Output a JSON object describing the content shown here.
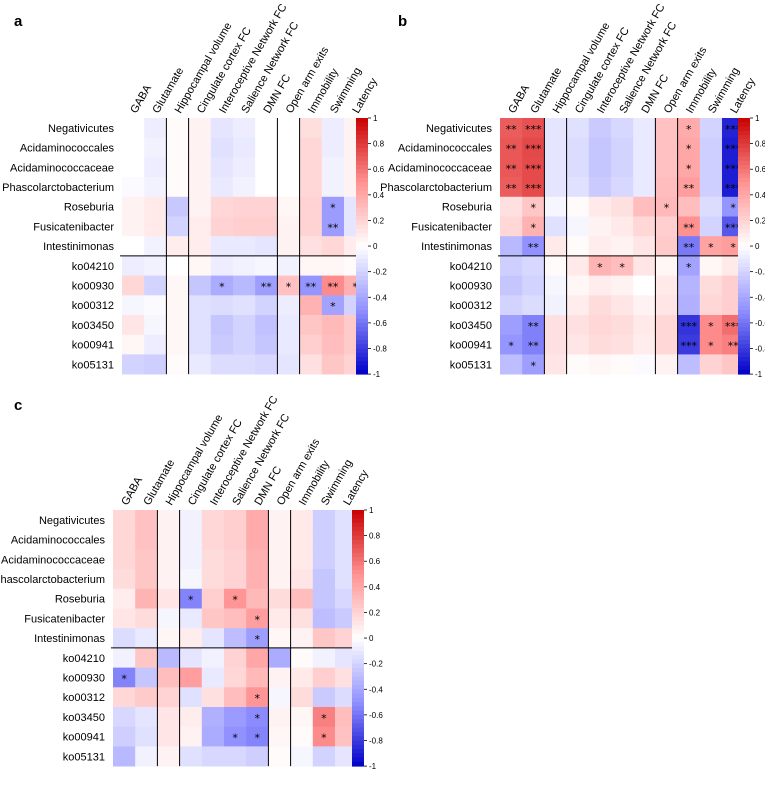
{
  "chart_data": [
    {
      "type": "heatmap",
      "panel_label": "a",
      "rows": [
        "Negativicutes",
        "Acidaminococcales",
        "Acidaminococcaceae",
        "Phascolarctobacterium",
        "Roseburia",
        "Fusicatenibacter",
        "Intestinimonas",
        "ko04210",
        "ko00930",
        "ko00312",
        "ko03450",
        "ko00941",
        "ko05131"
      ],
      "columns": [
        "GABA",
        "Glutamate",
        "Hippocampal volume",
        "Cingulate cortex FC",
        "Interoceptive Network FC",
        "Salience Network FC",
        "DMN FC",
        "Open arm exits",
        "Immobility",
        "Swimming",
        "Latency"
      ],
      "values": [
        [
          0.0,
          -0.08,
          0.02,
          0.06,
          -0.12,
          -0.08,
          0.0,
          0.0,
          0.15,
          -0.08,
          0.06
        ],
        [
          0.0,
          -0.06,
          0.02,
          0.06,
          -0.14,
          -0.1,
          0.0,
          0.0,
          0.18,
          -0.08,
          0.06
        ],
        [
          0.0,
          -0.08,
          0.02,
          0.06,
          -0.12,
          -0.08,
          0.0,
          0.0,
          0.18,
          -0.06,
          0.06
        ],
        [
          -0.02,
          -0.06,
          0.02,
          0.06,
          -0.1,
          -0.06,
          0.0,
          0.0,
          0.18,
          -0.06,
          0.06
        ],
        [
          0.06,
          0.1,
          -0.25,
          0.06,
          0.18,
          0.2,
          0.2,
          0.04,
          0.2,
          -0.45,
          -0.12
        ],
        [
          0.06,
          0.1,
          -0.2,
          0.08,
          0.2,
          0.22,
          0.22,
          0.06,
          0.2,
          -0.45,
          -0.12
        ],
        [
          0.0,
          -0.06,
          0.08,
          0.08,
          -0.1,
          -0.1,
          -0.12,
          0.06,
          0.14,
          0.18,
          0.08
        ],
        [
          -0.08,
          -0.06,
          0.0,
          0.04,
          -0.08,
          -0.06,
          -0.04,
          -0.06,
          0.04,
          0.04,
          0.02
        ],
        [
          0.18,
          -0.2,
          0.04,
          -0.26,
          -0.38,
          -0.32,
          -0.44,
          0.28,
          -0.48,
          0.52,
          0.36
        ],
        [
          -0.04,
          -0.02,
          0.04,
          -0.14,
          -0.16,
          -0.14,
          -0.2,
          -0.08,
          0.35,
          -0.42,
          -0.2
        ],
        [
          0.12,
          -0.04,
          0.04,
          -0.14,
          -0.26,
          -0.2,
          -0.28,
          -0.1,
          0.26,
          0.32,
          0.24
        ],
        [
          0.04,
          -0.08,
          0.04,
          -0.14,
          -0.24,
          -0.2,
          -0.26,
          -0.1,
          0.22,
          0.3,
          0.24
        ],
        [
          -0.2,
          -0.22,
          0.02,
          -0.1,
          -0.16,
          -0.16,
          -0.18,
          -0.12,
          0.14,
          0.26,
          0.2
        ]
      ],
      "significance": [
        [
          "",
          "",
          "",
          "",
          "",
          "",
          "",
          "",
          "",
          "",
          ""
        ],
        [
          "",
          "",
          "",
          "",
          "",
          "",
          "",
          "",
          "",
          "",
          ""
        ],
        [
          "",
          "",
          "",
          "",
          "",
          "",
          "",
          "",
          "",
          "",
          ""
        ],
        [
          "",
          "",
          "",
          "",
          "",
          "",
          "",
          "",
          "",
          "",
          ""
        ],
        [
          "",
          "",
          "",
          "",
          "",
          "",
          "",
          "",
          "",
          "*",
          ""
        ],
        [
          "",
          "",
          "",
          "",
          "",
          "",
          "",
          "",
          "",
          "**",
          ""
        ],
        [
          "",
          "",
          "",
          "",
          "",
          "",
          "",
          "",
          "",
          "",
          ""
        ],
        [
          "",
          "",
          "",
          "",
          "",
          "",
          "",
          "",
          "",
          "",
          ""
        ],
        [
          "",
          "",
          "",
          "",
          "*",
          "",
          "**",
          "*",
          "**",
          "**",
          "*"
        ],
        [
          "",
          "",
          "",
          "",
          "",
          "",
          "",
          "",
          "",
          "*",
          ""
        ],
        [
          "",
          "",
          "",
          "",
          "",
          "",
          "",
          "",
          "",
          "",
          ""
        ],
        [
          "",
          "",
          "",
          "",
          "",
          "",
          "",
          "",
          "",
          "",
          ""
        ],
        [
          "",
          "",
          "",
          "",
          "",
          "",
          "",
          "",
          "",
          "",
          ""
        ]
      ],
      "zlim": [
        -1,
        1
      ],
      "colorbar_ticks": [
        "1",
        "0.8",
        "0.6",
        "0.4",
        "0.2",
        "0",
        "-0.2",
        "-0.4",
        "-0.6",
        "-0.8",
        "-1"
      ]
    },
    {
      "type": "heatmap",
      "panel_label": "b",
      "rows": [
        "Negativicutes",
        "Acidaminococcales",
        "Acidaminococcaceae",
        "Phascolarctobacterium",
        "Roseburia",
        "Fusicatenibacter",
        "Intestinimonas",
        "ko04210",
        "ko00930",
        "ko00312",
        "ko03450",
        "ko00941",
        "ko05131"
      ],
      "columns": [
        "GABA",
        "Glutamate",
        "Hippocampal volume",
        "Cingulate cortex FC",
        "Interoceptive Network FC",
        "Salience Network FC",
        "DMN FC",
        "Open arm exits",
        "Immobility",
        "Swimming",
        "Latency"
      ],
      "values": [
        [
          0.68,
          0.72,
          -0.12,
          -0.14,
          -0.24,
          -0.18,
          -0.1,
          0.28,
          0.38,
          -0.2,
          -0.88
        ],
        [
          0.7,
          0.75,
          -0.12,
          -0.16,
          -0.26,
          -0.2,
          -0.1,
          0.28,
          0.4,
          -0.22,
          -0.9
        ],
        [
          0.7,
          0.74,
          -0.12,
          -0.16,
          -0.26,
          -0.2,
          -0.1,
          0.28,
          0.4,
          -0.22,
          -0.9
        ],
        [
          0.68,
          0.74,
          -0.12,
          -0.14,
          -0.24,
          -0.18,
          -0.1,
          0.3,
          0.44,
          -0.22,
          -0.9
        ],
        [
          0.14,
          0.26,
          -0.04,
          0.02,
          0.1,
          0.14,
          0.3,
          0.32,
          0.3,
          -0.16,
          -0.48
        ],
        [
          0.18,
          0.35,
          -0.14,
          -0.04,
          0.06,
          0.1,
          0.18,
          0.22,
          0.5,
          -0.2,
          -0.7
        ],
        [
          -0.32,
          -0.5,
          0.1,
          0.02,
          0.08,
          0.06,
          0.12,
          0.24,
          -0.58,
          0.42,
          0.45
        ],
        [
          -0.22,
          -0.18,
          0.02,
          0.1,
          0.34,
          0.3,
          0.12,
          0.04,
          -0.42,
          0.04,
          0.1
        ],
        [
          -0.26,
          -0.2,
          -0.04,
          0.04,
          0.08,
          0.06,
          0.0,
          0.1,
          -0.34,
          0.16,
          0.22
        ],
        [
          -0.2,
          -0.16,
          -0.06,
          0.08,
          0.16,
          0.12,
          0.06,
          0.12,
          -0.36,
          0.18,
          0.22
        ],
        [
          -0.44,
          -0.56,
          0.14,
          0.14,
          0.18,
          0.16,
          0.1,
          0.18,
          -0.82,
          0.52,
          0.62
        ],
        [
          -0.48,
          -0.56,
          0.14,
          0.12,
          0.16,
          0.14,
          0.08,
          0.18,
          -0.8,
          0.52,
          0.56
        ],
        [
          -0.3,
          -0.44,
          0.12,
          0.02,
          0.04,
          0.02,
          -0.02,
          0.06,
          -0.3,
          0.2,
          0.26
        ]
      ],
      "significance": [
        [
          "**",
          "***",
          "",
          "",
          "",
          "",
          "",
          "",
          "*",
          "",
          "***"
        ],
        [
          "**",
          "***",
          "",
          "",
          "",
          "",
          "",
          "",
          "*",
          "",
          "***"
        ],
        [
          "**",
          "***",
          "",
          "",
          "",
          "",
          "",
          "",
          "*",
          "",
          "***"
        ],
        [
          "**",
          "***",
          "",
          "",
          "",
          "",
          "",
          "",
          "**",
          "",
          "***"
        ],
        [
          "",
          "*",
          "",
          "",
          "",
          "",
          "",
          "*",
          "",
          "",
          "*"
        ],
        [
          "",
          "*",
          "",
          "",
          "",
          "",
          "",
          "",
          "**",
          "",
          "***"
        ],
        [
          "",
          "**",
          "",
          "",
          "",
          "",
          "",
          "",
          "**",
          "*",
          "*"
        ],
        [
          "",
          "",
          "",
          "",
          "*",
          "*",
          "",
          "",
          "*",
          "",
          ""
        ],
        [
          "",
          "",
          "",
          "",
          "",
          "",
          "",
          "",
          "",
          "",
          ""
        ],
        [
          "",
          "",
          "",
          "",
          "",
          "",
          "",
          "",
          "",
          "",
          ""
        ],
        [
          "",
          "**",
          "",
          "",
          "",
          "",
          "",
          "",
          "***",
          "*",
          "***"
        ],
        [
          "*",
          "**",
          "",
          "",
          "",
          "",
          "",
          "",
          "***",
          "*",
          "**"
        ],
        [
          "",
          "*",
          "",
          "",
          "",
          "",
          "",
          "",
          "",
          "",
          ""
        ]
      ],
      "zlim": [
        -1,
        1
      ],
      "colorbar_ticks": [
        "1",
        "0.8",
        "0.6",
        "0.4",
        "0.2",
        "0",
        "-0.2",
        "-0.4",
        "-0.6",
        "-0.8",
        "-1"
      ]
    },
    {
      "type": "heatmap",
      "panel_label": "c",
      "rows": [
        "Negativicutes",
        "Acidaminococcales",
        "Acidaminococcaceae",
        "Phascolarctobacterium",
        "Roseburia",
        "Fusicatenibacter",
        "Intestinimonas",
        "ko04210",
        "ko00930",
        "ko00312",
        "ko03450",
        "ko00941",
        "ko05131"
      ],
      "columns": [
        "GABA",
        "Glutamate",
        "Hippocampal volume",
        "Cingulate cortex FC",
        "Interoceptive Network FC",
        "Salience Network FC",
        "DMN FC",
        "Open arm exits",
        "Immobility",
        "Swimming",
        "Latency"
      ],
      "values": [
        [
          0.18,
          0.28,
          0.06,
          -0.06,
          0.18,
          0.22,
          0.38,
          0.06,
          0.1,
          -0.22,
          -0.14
        ],
        [
          0.18,
          0.28,
          0.06,
          -0.06,
          0.18,
          0.22,
          0.38,
          0.06,
          0.1,
          -0.22,
          -0.14
        ],
        [
          0.18,
          0.26,
          0.06,
          -0.06,
          0.16,
          0.2,
          0.36,
          0.06,
          0.1,
          -0.22,
          -0.14
        ],
        [
          0.16,
          0.26,
          0.06,
          -0.04,
          0.16,
          0.2,
          0.36,
          0.06,
          0.12,
          -0.26,
          -0.14
        ],
        [
          0.08,
          0.34,
          0.12,
          -0.55,
          0.22,
          0.48,
          0.32,
          0.16,
          0.3,
          -0.26,
          -0.18
        ],
        [
          0.12,
          0.16,
          -0.04,
          -0.1,
          0.26,
          0.3,
          0.44,
          0.1,
          0.14,
          -0.3,
          -0.24
        ],
        [
          -0.16,
          -0.1,
          0.04,
          0.08,
          -0.12,
          -0.3,
          -0.44,
          0.04,
          0.06,
          0.26,
          0.2
        ],
        [
          -0.06,
          0.26,
          -0.32,
          -0.12,
          -0.06,
          0.2,
          0.4,
          -0.38,
          0.02,
          -0.06,
          -0.12
        ],
        [
          -0.55,
          -0.26,
          0.3,
          0.44,
          -0.1,
          0.18,
          0.32,
          0.06,
          0.1,
          0.22,
          0.14
        ],
        [
          0.18,
          0.24,
          0.2,
          -0.14,
          0.14,
          0.3,
          0.48,
          -0.04,
          0.16,
          -0.24,
          -0.16
        ],
        [
          -0.18,
          -0.12,
          0.12,
          0.08,
          -0.36,
          -0.46,
          -0.52,
          0.06,
          0.04,
          0.56,
          0.3
        ],
        [
          -0.22,
          -0.14,
          0.12,
          0.06,
          -0.38,
          -0.5,
          -0.54,
          0.04,
          0.02,
          0.52,
          0.28
        ],
        [
          -0.32,
          -0.06,
          0.06,
          -0.14,
          -0.18,
          -0.18,
          -0.22,
          0.02,
          -0.04,
          -0.2,
          -0.12
        ]
      ],
      "significance": [
        [
          "",
          "",
          "",
          "",
          "",
          "",
          "",
          "",
          "",
          "",
          ""
        ],
        [
          "",
          "",
          "",
          "",
          "",
          "",
          "",
          "",
          "",
          "",
          ""
        ],
        [
          "",
          "",
          "",
          "",
          "",
          "",
          "",
          "",
          "",
          "",
          ""
        ],
        [
          "",
          "",
          "",
          "",
          "",
          "",
          "",
          "",
          "",
          "",
          ""
        ],
        [
          "",
          "",
          "",
          "*",
          "",
          "*",
          "",
          "",
          "",
          "",
          ""
        ],
        [
          "",
          "",
          "",
          "",
          "",
          "",
          "*",
          "",
          "",
          "",
          ""
        ],
        [
          "",
          "",
          "",
          "",
          "",
          "",
          "*",
          "",
          "",
          "",
          ""
        ],
        [
          "",
          "",
          "",
          "",
          "",
          "",
          "",
          "",
          "",
          "",
          ""
        ],
        [
          "*",
          "",
          "",
          "",
          "",
          "",
          "",
          "",
          "",
          "",
          ""
        ],
        [
          "",
          "",
          "",
          "",
          "",
          "",
          "*",
          "",
          "",
          "",
          ""
        ],
        [
          "",
          "",
          "",
          "",
          "",
          "",
          "*",
          "",
          "",
          "*",
          ""
        ],
        [
          "",
          "",
          "",
          "",
          "",
          "*",
          "*",
          "",
          "",
          "*",
          ""
        ],
        [
          "",
          "",
          "",
          "",
          "",
          "",
          "",
          "",
          "",
          "",
          ""
        ]
      ],
      "zlim": [
        -1,
        1
      ],
      "colorbar_ticks": [
        "1",
        "0.8",
        "0.6",
        "0.4",
        "0.2",
        "0",
        "-0.2",
        "-0.4",
        "-0.6",
        "-0.8",
        "-1"
      ]
    }
  ]
}
